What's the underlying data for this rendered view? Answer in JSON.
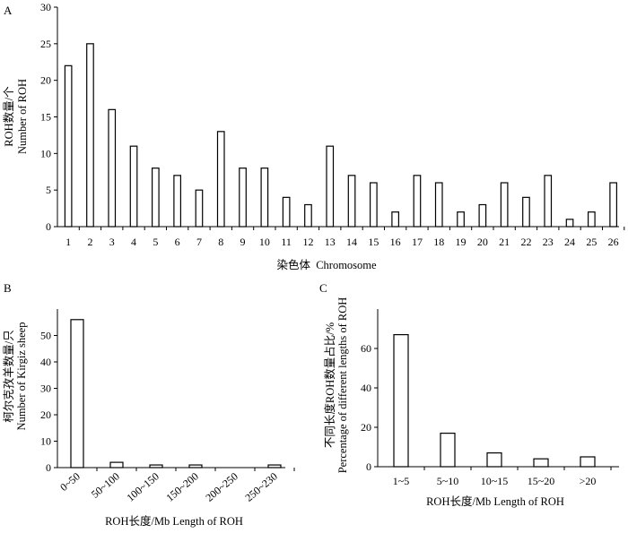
{
  "chart_data": [
    {
      "panel": "A",
      "type": "bar",
      "title": "",
      "ylabel": [
        "ROH数量/个",
        "Number of ROH"
      ],
      "xlabel": "染色体  Chromosome",
      "categories": [
        "1",
        "2",
        "3",
        "4",
        "5",
        "6",
        "7",
        "8",
        "9",
        "10",
        "11",
        "12",
        "13",
        "14",
        "15",
        "16",
        "17",
        "18",
        "19",
        "20",
        "21",
        "22",
        "23",
        "24",
        "25",
        "26"
      ],
      "values": [
        22,
        25,
        16,
        11,
        8,
        7,
        5,
        13,
        8,
        8,
        4,
        3,
        11,
        7,
        6,
        2,
        7,
        6,
        2,
        3,
        6,
        4,
        7,
        1,
        2,
        6
      ],
      "ylim": [
        0,
        30
      ],
      "yticks": [
        0,
        5,
        10,
        15,
        20,
        25,
        30
      ],
      "grid": false
    },
    {
      "panel": "B",
      "type": "bar",
      "title": "",
      "ylabel": [
        "柯尔克孜羊数量/只",
        "Number of Kirgiz sheep"
      ],
      "xlabel": "ROH长度/Mb Length of ROH",
      "categories": [
        "0~50",
        "50~100",
        "100~150",
        "150~200",
        "200~250",
        "250~230"
      ],
      "values": [
        56,
        2,
        1,
        1,
        0,
        1
      ],
      "ylim": [
        0,
        60
      ],
      "yticks": [
        0,
        10,
        20,
        30,
        40,
        50
      ],
      "grid": false
    },
    {
      "panel": "C",
      "type": "bar",
      "title": "",
      "ylabel": [
        "不同长度ROH数量占比/%",
        "Percentage of different lengths of ROH"
      ],
      "xlabel": "ROH长度/Mb Length of ROH",
      "categories": [
        "1~5",
        "5~10",
        "10~15",
        "15~20",
        ">20"
      ],
      "values": [
        67,
        17,
        7,
        4,
        5
      ],
      "ylim": [
        0,
        80
      ],
      "yticks": [
        0,
        20,
        40,
        60
      ],
      "grid": false
    }
  ]
}
